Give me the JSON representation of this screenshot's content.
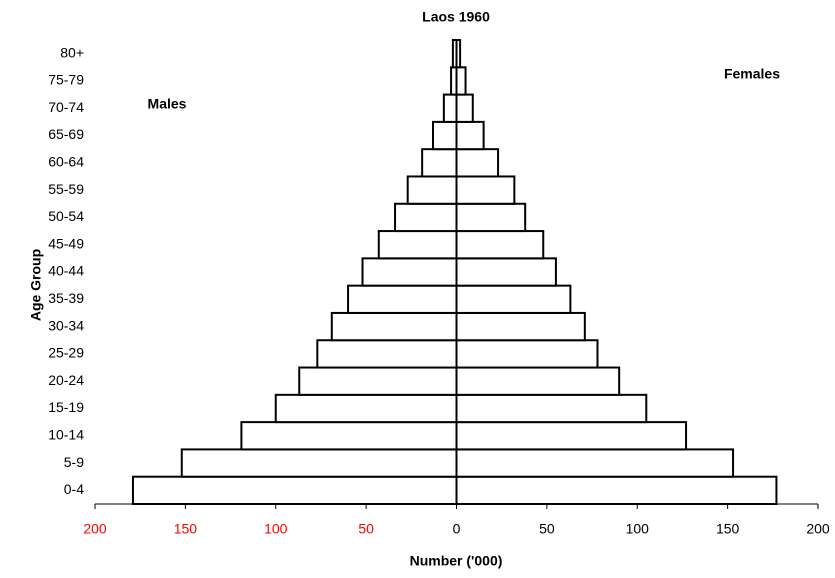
{
  "chart_data": {
    "type": "pyramid",
    "title": "Laos 1960",
    "x_label": "Number ('000)",
    "y_label": "Age Group",
    "annotations": [
      "Males",
      "Females"
    ],
    "categories": [
      "0-4",
      "5-9",
      "10-14",
      "15-19",
      "20-24",
      "25-29",
      "30-34",
      "35-39",
      "40-44",
      "45-49",
      "50-54",
      "55-59",
      "60-64",
      "65-69",
      "70-74",
      "75-79",
      "80+"
    ],
    "series": [
      {
        "name": "Males",
        "color": "#ffffff",
        "values": [
          -179,
          -152,
          -119,
          -100,
          -87,
          -77,
          -69,
          -60,
          -52,
          -43,
          -34,
          -27,
          -19,
          -13,
          -7,
          -3,
          -2
        ]
      },
      {
        "name": "Females",
        "color": "#ffffff",
        "values": [
          177,
          153,
          127,
          105,
          90,
          78,
          71,
          63,
          55,
          48,
          38,
          32,
          23,
          15,
          9,
          5,
          2
        ]
      }
    ],
    "xlim": [
      -200,
      200
    ],
    "xticks": [
      {
        "value": -200,
        "label": "200"
      },
      {
        "value": -150,
        "label": "150"
      },
      {
        "value": -100,
        "label": "100"
      },
      {
        "value": -50,
        "label": "50"
      },
      0,
      50,
      100,
      150,
      200
    ],
    "negative_tick_color": "#ff0000",
    "bar_outline": "#000000"
  }
}
